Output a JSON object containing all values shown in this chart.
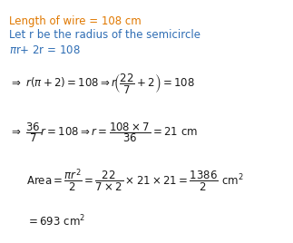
{
  "bg_color": "#ffffff",
  "orange": "#e07800",
  "blue": "#2e6db4",
  "black": "#1a1a1a",
  "figsize": [
    3.23,
    2.68
  ],
  "dpi": 100
}
